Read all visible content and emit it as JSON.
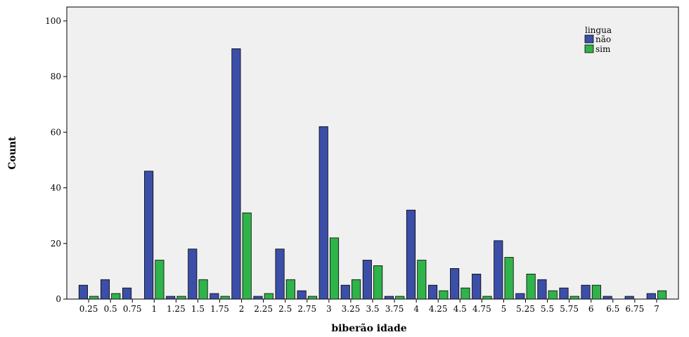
{
  "chart_data": {
    "type": "bar",
    "xlabel": "biberão idade",
    "ylabel": "Count",
    "ylim": [
      0,
      105
    ],
    "yticks": [
      0,
      20,
      40,
      60,
      80,
      100
    ],
    "grid": false,
    "legend": {
      "title": "lingua",
      "placement": "top-right"
    },
    "categories": [
      "0.25",
      "0.5",
      "0.75",
      "1",
      "1.25",
      "1.5",
      "1.75",
      "2",
      "2.25",
      "2.5",
      "2.75",
      "3",
      "3.25",
      "3.5",
      "3.75",
      "4",
      "4.25",
      "4.5",
      "4.75",
      "5",
      "5.25",
      "5.5",
      "5.75",
      "6",
      "6.5",
      "6.75",
      "7"
    ],
    "series": [
      {
        "name": "não",
        "color": "#3b4fa8",
        "values": [
          5,
          7,
          4,
          46,
          1,
          18,
          2,
          90,
          1,
          18,
          3,
          62,
          5,
          14,
          1,
          32,
          5,
          11,
          9,
          21,
          2,
          7,
          4,
          5,
          1,
          1,
          2
        ]
      },
      {
        "name": "sim",
        "color": "#2fb34a",
        "values": [
          1,
          2,
          0,
          14,
          1,
          7,
          1,
          31,
          2,
          7,
          1,
          22,
          7,
          12,
          1,
          14,
          3,
          4,
          1,
          15,
          9,
          3,
          1,
          5,
          0,
          0,
          3
        ]
      }
    ],
    "plot_background": "#f0f0f0"
  }
}
